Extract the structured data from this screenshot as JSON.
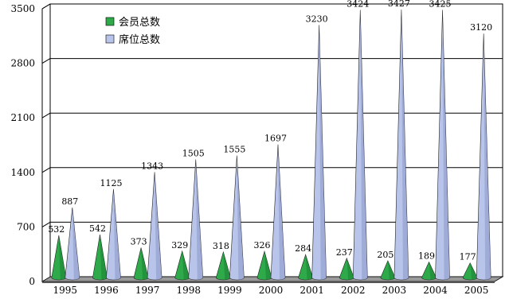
{
  "chart_data": {
    "type": "bar",
    "bar_shape": "cone",
    "categories": [
      "1995",
      "1996",
      "1997",
      "1998",
      "1999",
      "2000",
      "2001",
      "2002",
      "2003",
      "2004",
      "2005"
    ],
    "series": [
      {
        "name": "会员总数",
        "color": "#2eaa4a",
        "values": [
          532,
          542,
          373,
          329,
          318,
          326,
          284,
          237,
          205,
          189,
          177
        ]
      },
      {
        "name": "席位总数",
        "color": "#b8c4ea",
        "values": [
          887,
          1125,
          1343,
          1505,
          1555,
          1697,
          3230,
          3424,
          3427,
          3425,
          3120
        ]
      }
    ],
    "yticks": [
      0,
      700,
      1400,
      2100,
      2800,
      3500
    ],
    "ylim": [
      0,
      3500
    ],
    "grid": true,
    "legend_position": "top-left"
  }
}
